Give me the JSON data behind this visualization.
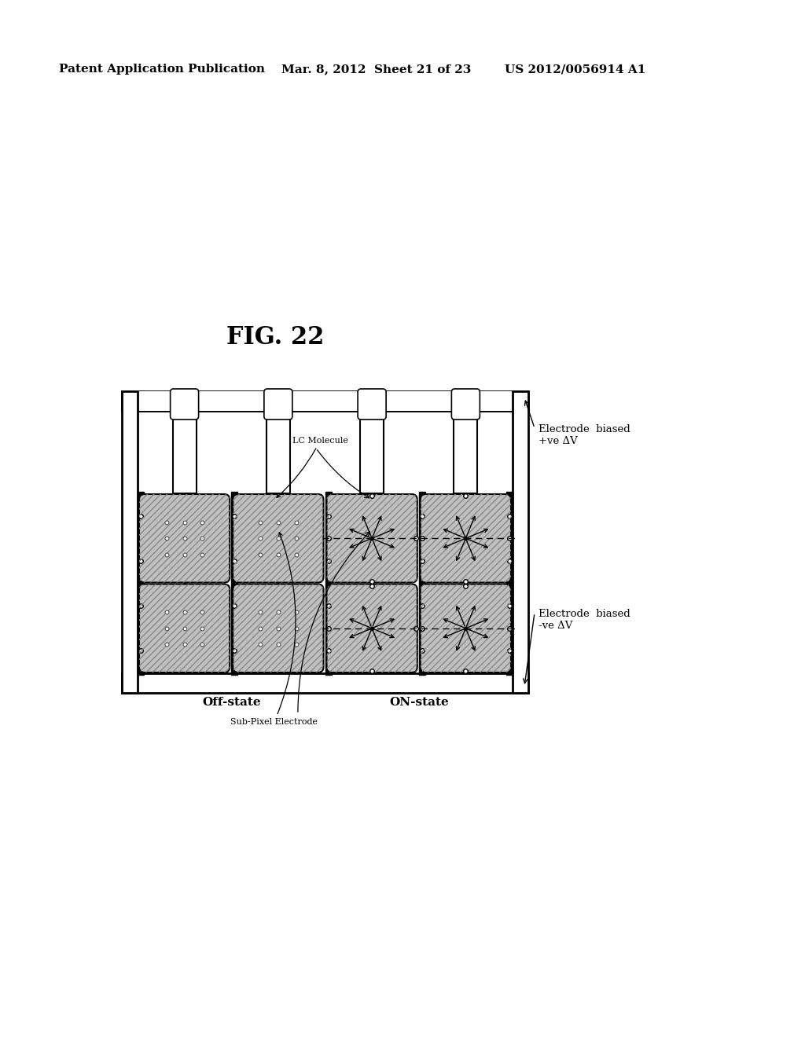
{
  "header_left": "Patent Application Publication",
  "header_mid": "Mar. 8, 2012  Sheet 21 of 23",
  "header_right": "US 2012/0056914 A1",
  "fig_label": "FIG. 22",
  "bg_color": "#ffffff",
  "label_offstate": "Off-state",
  "label_onstate": "ON-state",
  "label_lc": "LC Molecule",
  "label_subpixel": "Sub-Pixel Electrode",
  "label_elec_pos": "Electrode  biased\n+ve ΔV",
  "label_elec_neg": "Electrode  biased\n-ve ΔV"
}
